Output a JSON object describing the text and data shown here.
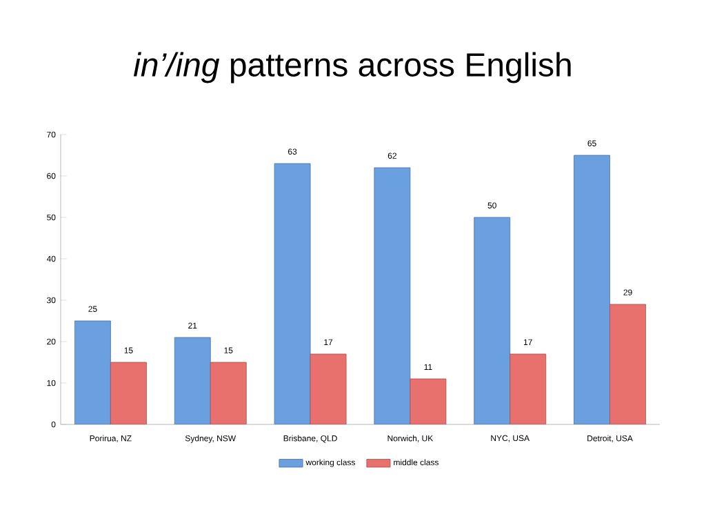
{
  "chart_data": {
    "type": "bar",
    "title": "*in’/ing* patterns across English",
    "categories": [
      "Porirua, NZ",
      "Sydney, NSW",
      "Brisbane, QLD",
      "Norwich, UK",
      "NYC, USA",
      "Detroit, USA"
    ],
    "series": [
      {
        "name": "working class",
        "color": "#6a9fe0",
        "values": [
          25,
          21,
          63,
          62,
          50,
          65
        ]
      },
      {
        "name": "middle class",
        "color": "#e8716e",
        "values": [
          15,
          15,
          17,
          11,
          17,
          29
        ]
      }
    ],
    "ylim": [
      0,
      70
    ],
    "yticks": [
      0,
      10,
      20,
      30,
      40,
      50,
      60,
      70
    ],
    "data_labels": true,
    "legend": "bottom",
    "grid": false
  }
}
